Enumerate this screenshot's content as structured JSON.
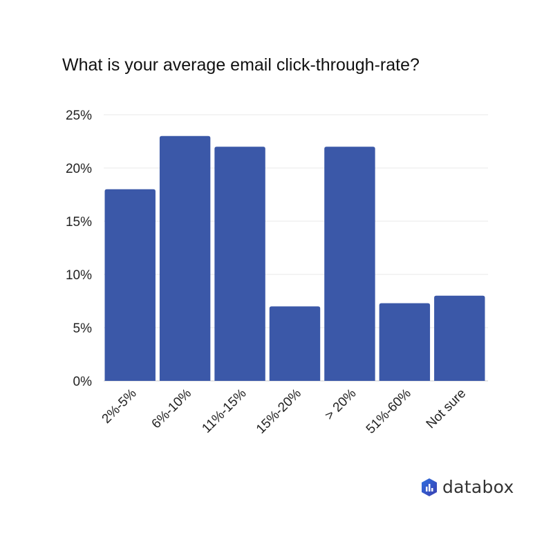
{
  "chart_data": {
    "type": "bar",
    "title": "What is your average email click-through-rate?",
    "categories": [
      "2%-5%",
      "6%-10%",
      "11%-15%",
      "15%-20%",
      "> 20%",
      "51%-60%",
      "Not sure"
    ],
    "values": [
      18,
      23,
      22,
      7,
      22,
      7.3,
      8
    ],
    "unit": "%",
    "ylim": [
      0,
      25
    ],
    "yticks": [
      0,
      5,
      10,
      15,
      20,
      25
    ],
    "ytick_labels": [
      "0%",
      "5%",
      "10%",
      "15%",
      "20%",
      "25%"
    ],
    "xlabel": "",
    "ylabel": "",
    "grid": true,
    "bar_color": "#3b58a8"
  },
  "logo": {
    "text": "databox"
  }
}
